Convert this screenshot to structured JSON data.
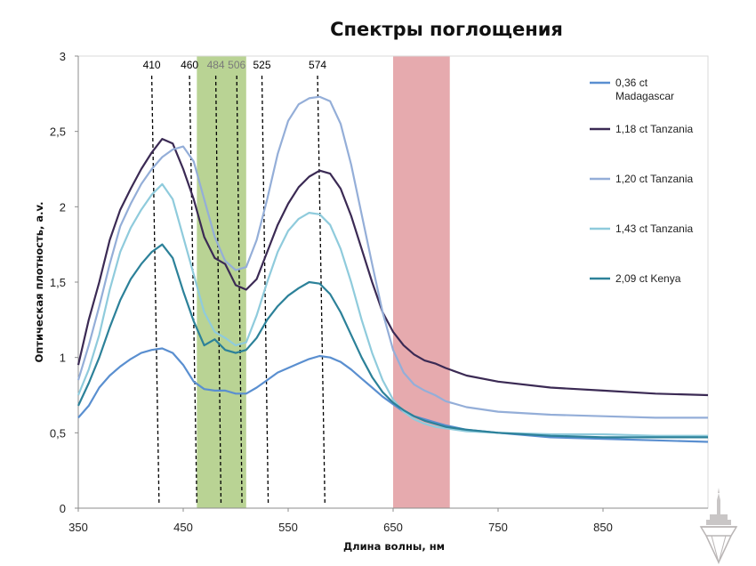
{
  "chart_data": {
    "type": "line",
    "title": "Спектры поглощения",
    "xlabel": "Длина волны, нм",
    "ylabel": "Оптическая плотность, а.v.",
    "xlim": [
      350,
      950
    ],
    "ylim": [
      0,
      3
    ],
    "x_ticks": [
      "350",
      "450",
      "550",
      "650",
      "750",
      "850"
    ],
    "y_ticks": [
      "0",
      "0,5",
      "1",
      "1,5",
      "2",
      "2,5",
      "3"
    ],
    "grid": false,
    "legend_position": "right",
    "series": [
      {
        "name": "0,36 ct Madagascar",
        "color": "#5a8fd0",
        "points": [
          [
            350,
            0.6
          ],
          [
            360,
            0.68
          ],
          [
            370,
            0.8
          ],
          [
            380,
            0.88
          ],
          [
            390,
            0.94
          ],
          [
            400,
            0.99
          ],
          [
            410,
            1.03
          ],
          [
            420,
            1.05
          ],
          [
            430,
            1.06
          ],
          [
            440,
            1.03
          ],
          [
            450,
            0.95
          ],
          [
            460,
            0.84
          ],
          [
            470,
            0.79
          ],
          [
            480,
            0.78
          ],
          [
            490,
            0.78
          ],
          [
            500,
            0.76
          ],
          [
            510,
            0.76
          ],
          [
            520,
            0.8
          ],
          [
            530,
            0.85
          ],
          [
            540,
            0.9
          ],
          [
            550,
            0.93
          ],
          [
            560,
            0.96
          ],
          [
            570,
            0.99
          ],
          [
            580,
            1.01
          ],
          [
            590,
            1.0
          ],
          [
            600,
            0.97
          ],
          [
            610,
            0.92
          ],
          [
            620,
            0.86
          ],
          [
            630,
            0.8
          ],
          [
            640,
            0.74
          ],
          [
            650,
            0.69
          ],
          [
            660,
            0.64
          ],
          [
            670,
            0.61
          ],
          [
            680,
            0.59
          ],
          [
            690,
            0.57
          ],
          [
            700,
            0.55
          ],
          [
            720,
            0.52
          ],
          [
            750,
            0.5
          ],
          [
            800,
            0.47
          ],
          [
            850,
            0.46
          ],
          [
            900,
            0.45
          ],
          [
            950,
            0.44
          ]
        ]
      },
      {
        "name": "1,18 ct Tanzania",
        "color": "#3b2a54",
        "points": [
          [
            350,
            0.95
          ],
          [
            360,
            1.25
          ],
          [
            370,
            1.5
          ],
          [
            380,
            1.78
          ],
          [
            390,
            1.98
          ],
          [
            400,
            2.12
          ],
          [
            410,
            2.25
          ],
          [
            420,
            2.36
          ],
          [
            430,
            2.45
          ],
          [
            440,
            2.42
          ],
          [
            450,
            2.25
          ],
          [
            460,
            2.05
          ],
          [
            470,
            1.8
          ],
          [
            480,
            1.66
          ],
          [
            490,
            1.62
          ],
          [
            500,
            1.48
          ],
          [
            510,
            1.45
          ],
          [
            520,
            1.52
          ],
          [
            530,
            1.7
          ],
          [
            540,
            1.88
          ],
          [
            550,
            2.02
          ],
          [
            560,
            2.13
          ],
          [
            570,
            2.2
          ],
          [
            580,
            2.24
          ],
          [
            590,
            2.22
          ],
          [
            600,
            2.12
          ],
          [
            610,
            1.94
          ],
          [
            620,
            1.72
          ],
          [
            630,
            1.5
          ],
          [
            640,
            1.3
          ],
          [
            650,
            1.17
          ],
          [
            660,
            1.08
          ],
          [
            670,
            1.02
          ],
          [
            680,
            0.98
          ],
          [
            690,
            0.96
          ],
          [
            700,
            0.93
          ],
          [
            720,
            0.88
          ],
          [
            750,
            0.84
          ],
          [
            800,
            0.8
          ],
          [
            850,
            0.78
          ],
          [
            900,
            0.76
          ],
          [
            950,
            0.75
          ]
        ]
      },
      {
        "name": "1,20 ct Tanzania",
        "color": "#94aed8",
        "points": [
          [
            350,
            0.85
          ],
          [
            360,
            1.08
          ],
          [
            370,
            1.34
          ],
          [
            380,
            1.62
          ],
          [
            390,
            1.87
          ],
          [
            400,
            2.02
          ],
          [
            410,
            2.15
          ],
          [
            420,
            2.25
          ],
          [
            430,
            2.33
          ],
          [
            440,
            2.38
          ],
          [
            450,
            2.4
          ],
          [
            460,
            2.3
          ],
          [
            470,
            2.05
          ],
          [
            480,
            1.8
          ],
          [
            490,
            1.64
          ],
          [
            500,
            1.58
          ],
          [
            510,
            1.6
          ],
          [
            520,
            1.78
          ],
          [
            530,
            2.05
          ],
          [
            540,
            2.35
          ],
          [
            550,
            2.57
          ],
          [
            560,
            2.68
          ],
          [
            570,
            2.72
          ],
          [
            580,
            2.73
          ],
          [
            590,
            2.7
          ],
          [
            600,
            2.55
          ],
          [
            610,
            2.28
          ],
          [
            620,
            1.95
          ],
          [
            630,
            1.62
          ],
          [
            640,
            1.3
          ],
          [
            650,
            1.05
          ],
          [
            660,
            0.9
          ],
          [
            670,
            0.82
          ],
          [
            680,
            0.78
          ],
          [
            690,
            0.75
          ],
          [
            700,
            0.71
          ],
          [
            720,
            0.67
          ],
          [
            750,
            0.64
          ],
          [
            800,
            0.62
          ],
          [
            850,
            0.61
          ],
          [
            900,
            0.6
          ],
          [
            950,
            0.6
          ]
        ]
      },
      {
        "name": "1,43 ct Tanzania",
        "color": "#8fcbdc",
        "points": [
          [
            350,
            0.75
          ],
          [
            360,
            0.92
          ],
          [
            370,
            1.15
          ],
          [
            380,
            1.45
          ],
          [
            390,
            1.7
          ],
          [
            400,
            1.86
          ],
          [
            410,
            1.98
          ],
          [
            420,
            2.08
          ],
          [
            430,
            2.15
          ],
          [
            440,
            2.05
          ],
          [
            450,
            1.8
          ],
          [
            460,
            1.55
          ],
          [
            470,
            1.3
          ],
          [
            480,
            1.17
          ],
          [
            490,
            1.13
          ],
          [
            500,
            1.08
          ],
          [
            510,
            1.1
          ],
          [
            520,
            1.28
          ],
          [
            530,
            1.5
          ],
          [
            540,
            1.7
          ],
          [
            550,
            1.84
          ],
          [
            560,
            1.92
          ],
          [
            570,
            1.96
          ],
          [
            580,
            1.95
          ],
          [
            590,
            1.88
          ],
          [
            600,
            1.72
          ],
          [
            610,
            1.5
          ],
          [
            620,
            1.25
          ],
          [
            630,
            1.03
          ],
          [
            640,
            0.85
          ],
          [
            650,
            0.72
          ],
          [
            660,
            0.64
          ],
          [
            670,
            0.59
          ],
          [
            680,
            0.56
          ],
          [
            690,
            0.54
          ],
          [
            700,
            0.53
          ],
          [
            720,
            0.51
          ],
          [
            750,
            0.5
          ],
          [
            800,
            0.49
          ],
          [
            850,
            0.49
          ],
          [
            900,
            0.48
          ],
          [
            950,
            0.48
          ]
        ]
      },
      {
        "name": "2,09 ct Kenya",
        "color": "#2c8199",
        "points": [
          [
            350,
            0.68
          ],
          [
            360,
            0.83
          ],
          [
            370,
            1.0
          ],
          [
            380,
            1.2
          ],
          [
            390,
            1.38
          ],
          [
            400,
            1.52
          ],
          [
            410,
            1.62
          ],
          [
            420,
            1.7
          ],
          [
            430,
            1.75
          ],
          [
            440,
            1.66
          ],
          [
            450,
            1.44
          ],
          [
            460,
            1.24
          ],
          [
            470,
            1.08
          ],
          [
            480,
            1.12
          ],
          [
            490,
            1.05
          ],
          [
            500,
            1.03
          ],
          [
            510,
            1.05
          ],
          [
            520,
            1.13
          ],
          [
            530,
            1.25
          ],
          [
            540,
            1.34
          ],
          [
            550,
            1.41
          ],
          [
            560,
            1.46
          ],
          [
            570,
            1.5
          ],
          [
            580,
            1.49
          ],
          [
            590,
            1.42
          ],
          [
            600,
            1.3
          ],
          [
            610,
            1.15
          ],
          [
            620,
            1.0
          ],
          [
            630,
            0.87
          ],
          [
            640,
            0.77
          ],
          [
            650,
            0.7
          ],
          [
            660,
            0.65
          ],
          [
            670,
            0.61
          ],
          [
            680,
            0.58
          ],
          [
            690,
            0.56
          ],
          [
            700,
            0.54
          ],
          [
            720,
            0.52
          ],
          [
            750,
            0.5
          ],
          [
            800,
            0.48
          ],
          [
            850,
            0.47
          ],
          [
            900,
            0.47
          ],
          [
            950,
            0.47
          ]
        ]
      }
    ],
    "bands": [
      {
        "from": 463,
        "to": 510,
        "color": "#b9d394"
      },
      {
        "from": 650,
        "to": 704,
        "color": "#e6aaae"
      }
    ],
    "markers": [
      {
        "label": "410",
        "x_top": 420,
        "x_bottom": 427,
        "color": "#000000"
      },
      {
        "label": "460",
        "x_top": 456,
        "x_bottom": 463,
        "color": "#000000"
      },
      {
        "label": "484",
        "x_top": 481,
        "x_bottom": 486,
        "color": "#7a7a7a"
      },
      {
        "label": "506",
        "x_top": 501,
        "x_bottom": 506,
        "color": "#7a7a7a"
      },
      {
        "label": "525",
        "x_top": 525,
        "x_bottom": 531,
        "color": "#000000"
      },
      {
        "label": "574",
        "x_top": 578,
        "x_bottom": 585,
        "color": "#000000"
      }
    ]
  }
}
